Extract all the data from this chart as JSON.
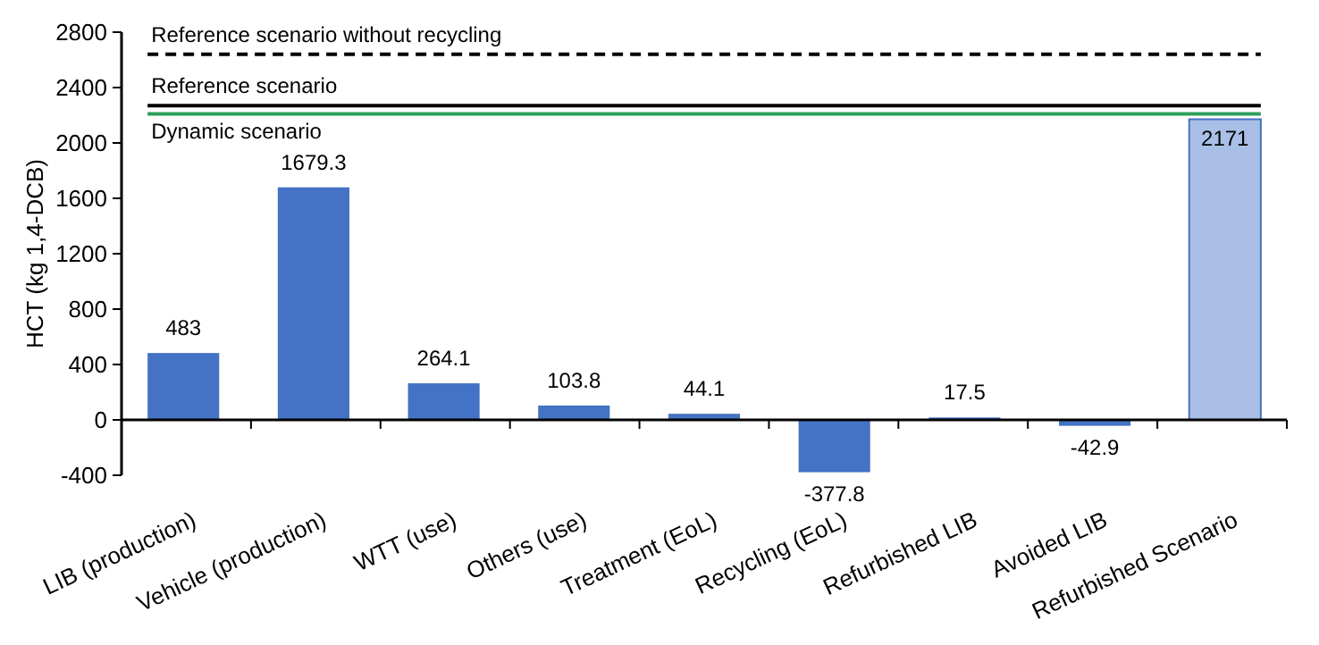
{
  "chart_data": {
    "type": "bar",
    "ylabel": "HCT (kg 1,4-DCB)",
    "categories": [
      "LIB (production)",
      "Vehicle (production)",
      "WTT (use)",
      "Others (use)",
      "Treatment (EoL)",
      "Recycling (EoL)",
      "Refurbished LIB",
      "Avoided LIB",
      "Refurbished Scenario"
    ],
    "values": [
      483,
      1679.3,
      264.1,
      103.8,
      44.1,
      -377.8,
      17.5,
      -42.9,
      2171
    ],
    "colors": [
      "#4472c4",
      "#4472c4",
      "#4472c4",
      "#4472c4",
      "#4472c4",
      "#4472c4",
      "#4472c4",
      "#4472c4",
      "#a9bfe6"
    ],
    "ylim": [
      -400,
      2800
    ],
    "yticks": [
      -400,
      0,
      400,
      800,
      1200,
      1600,
      2000,
      2400,
      2800
    ],
    "data_labels": true,
    "ref_lines": [
      {
        "axis": "y",
        "value": 2640,
        "label": "Reference scenario without recycling",
        "color": "#000000",
        "line_style": "dashed"
      },
      {
        "axis": "y",
        "value": 2270,
        "label": "Reference scenario",
        "color": "#000000",
        "line_style": "solid"
      },
      {
        "axis": "y",
        "value": 2210,
        "label": "Dynamic scenario",
        "color": "#2ca05a",
        "line_style": "solid"
      }
    ]
  }
}
